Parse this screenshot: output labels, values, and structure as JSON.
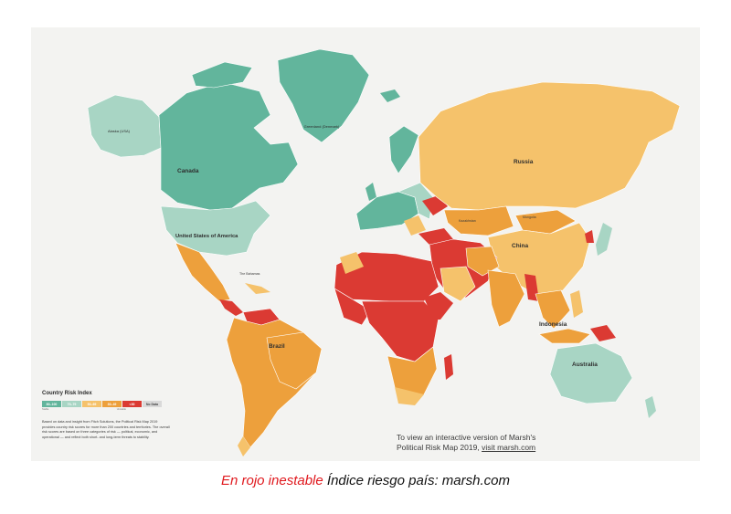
{
  "map": {
    "labels": {
      "alaska": "Alaska (USA)",
      "canada": "Canada",
      "greenland": "Greenland (Denmark)",
      "usa": "United States of America",
      "russia": "Russia",
      "china": "China",
      "brazil": "Brazil",
      "indonesia": "Indonesia",
      "australia": "Australia",
      "mongolia": "Mongolia",
      "kazakhstan": "Kazakhstan",
      "bahamas": "The Bahamas"
    }
  },
  "legend": {
    "title": "Country Risk Index",
    "bands": [
      {
        "label": "80–100",
        "color": "#62b59c"
      },
      {
        "label": "70–79",
        "color": "#a8d5c4"
      },
      {
        "label": "50–69",
        "color": "#f5c26b"
      },
      {
        "label": "30–49",
        "color": "#eda03c"
      },
      {
        "label": "<30",
        "color": "#db3a33"
      },
      {
        "label": "No Data",
        "color": "#d9d9d9"
      }
    ],
    "low_label": "Stable",
    "high_label": "Unstable",
    "description": "Based on data and insight from Fitch Solutions, the Political Risk Map 2019 provides country risk scores for more than 200 countries and territories. The overall risk scores are based on three categories of risk — political, economic, and operational — and reflect both short- and long-term threats to stability."
  },
  "cta": {
    "line1": "To view an interactive version of Marsh's",
    "line2_prefix": "Political Risk Map 2019,",
    "link": "visit marsh.com"
  },
  "caption": {
    "red": "En rojo inestable",
    "black": "Índice riesgo país: marsh.com"
  },
  "colors": {
    "stable": "#62b59c",
    "light_stable": "#a8d5c4",
    "moderate": "#f5c26b",
    "elevated": "#eda03c",
    "high": "#db3a33",
    "no_data": "#d9d9d9"
  }
}
